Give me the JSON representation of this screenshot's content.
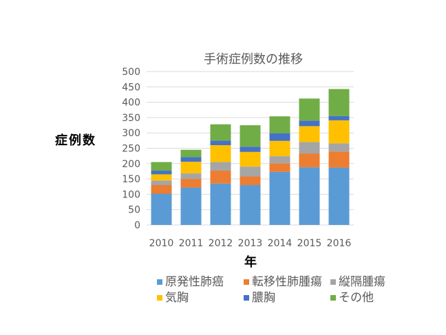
{
  "chart_data": {
    "type": "bar",
    "stacked": true,
    "title": "手術症例数の推移",
    "xlabel": "年",
    "ylabel": "症例数",
    "ylim": [
      0,
      500
    ],
    "yticks": [
      0,
      50,
      100,
      150,
      200,
      250,
      300,
      350,
      400,
      450,
      500
    ],
    "categories": [
      "2010",
      "2011",
      "2012",
      "2013",
      "2014",
      "2015",
      "2016"
    ],
    "series": [
      {
        "name": "原発性肺癌",
        "color": "#5B9BD5",
        "values": [
          102,
          122,
          135,
          130,
          173,
          188,
          187
        ]
      },
      {
        "name": "転移性肺腫瘍",
        "color": "#ED7D31",
        "values": [
          28,
          28,
          42,
          28,
          28,
          45,
          52
        ]
      },
      {
        "name": "縦隔腫瘍",
        "color": "#A5A5A5",
        "values": [
          15,
          18,
          28,
          32,
          23,
          37,
          27
        ]
      },
      {
        "name": "気胸",
        "color": "#FFC000",
        "values": [
          20,
          38,
          55,
          48,
          50,
          52,
          75
        ]
      },
      {
        "name": "膿胸",
        "color": "#4472C4",
        "values": [
          12,
          15,
          15,
          17,
          25,
          18,
          14
        ]
      },
      {
        "name": "その他",
        "color": "#70AD47",
        "values": [
          28,
          24,
          53,
          70,
          55,
          72,
          88
        ]
      }
    ],
    "grid": true,
    "legend": "bottom"
  }
}
